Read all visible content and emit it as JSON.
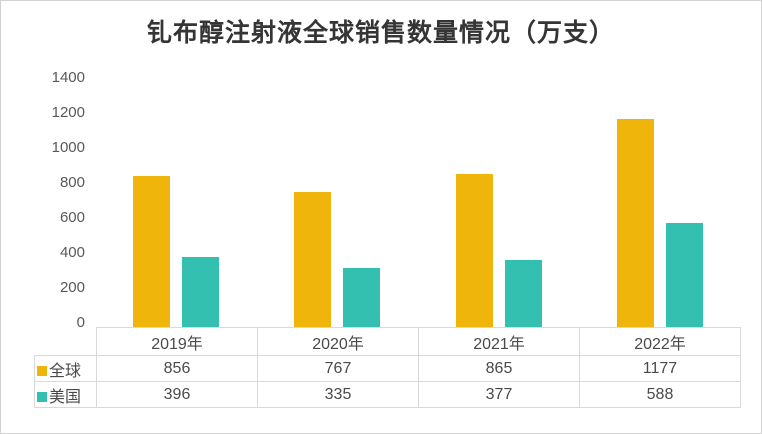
{
  "chart_data": {
    "type": "bar",
    "title": "钆布醇注射液全球销售数量情况（万支）",
    "categories": [
      "2019年",
      "2020年",
      "2021年",
      "2022年"
    ],
    "series": [
      {
        "name": "全球",
        "color": "#f0b50a",
        "values": [
          856,
          767,
          865,
          1177
        ]
      },
      {
        "name": "美国",
        "color": "#34c0b1",
        "values": [
          396,
          335,
          377,
          588
        ]
      }
    ],
    "xlabel": "",
    "ylabel": "",
    "ylim": [
      0,
      1400
    ],
    "yticks": [
      0,
      200,
      400,
      600,
      800,
      1000,
      1200,
      1400
    ],
    "grid": false,
    "legend_position": "data-table-left",
    "colors": {
      "title_text": "#353535",
      "axis_text": "#595959",
      "table_text": "#4a4a4a",
      "table_border": "#d9d9d9",
      "background": "#ffffff"
    }
  }
}
